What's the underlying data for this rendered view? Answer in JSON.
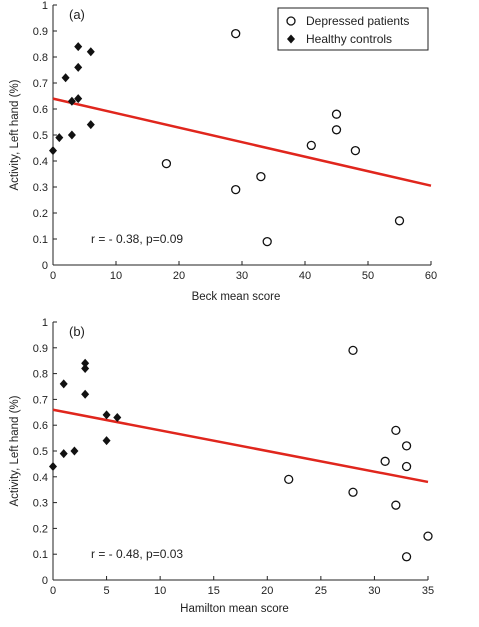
{
  "chart_data": [
    {
      "type": "scatter",
      "panel_label": "(a)",
      "xlabel": "Beck mean score",
      "ylabel": "Activity, Left hand (%)",
      "xlim": [
        0,
        60
      ],
      "ylim": [
        0,
        1
      ],
      "xticks": [
        0,
        10,
        20,
        30,
        40,
        50,
        60
      ],
      "yticks": [
        0,
        0.1,
        0.2,
        0.3,
        0.4,
        0.5,
        0.6,
        0.7,
        0.8,
        0.9,
        1
      ],
      "annotation": "r = - 0.38, p=0.09",
      "legend": {
        "placement": "top-right",
        "entries": [
          {
            "label": "Depressed patients",
            "marker": "open-circle"
          },
          {
            "label": "Healthy controls",
            "marker": "filled-diamond"
          }
        ]
      },
      "series": [
        {
          "name": "Depressed patients",
          "marker": "open-circle",
          "points": [
            [
              18,
              0.39
            ],
            [
              29,
              0.89
            ],
            [
              29,
              0.29
            ],
            [
              33,
              0.34
            ],
            [
              34,
              0.09
            ],
            [
              41,
              0.46
            ],
            [
              45,
              0.58
            ],
            [
              45,
              0.52
            ],
            [
              48,
              0.44
            ],
            [
              55,
              0.17
            ]
          ]
        },
        {
          "name": "Healthy controls",
          "marker": "filled-diamond",
          "points": [
            [
              0,
              0.44
            ],
            [
              1,
              0.49
            ],
            [
              2,
              0.72
            ],
            [
              3,
              0.5
            ],
            [
              3,
              0.63
            ],
            [
              4,
              0.84
            ],
            [
              4,
              0.76
            ],
            [
              4,
              0.64
            ],
            [
              6,
              0.82
            ],
            [
              6,
              0.54
            ]
          ]
        }
      ],
      "fit_line": {
        "color": "#e0261d",
        "x": [
          0,
          60
        ],
        "y": [
          0.64,
          0.305
        ]
      }
    },
    {
      "type": "scatter",
      "panel_label": "(b)",
      "xlabel": "Hamilton mean score",
      "ylabel": "Activity, Left hand (%)",
      "xlim": [
        0,
        35
      ],
      "ylim": [
        0,
        1
      ],
      "xticks": [
        0,
        5,
        10,
        15,
        20,
        25,
        30,
        35
      ],
      "yticks": [
        0,
        0.1,
        0.2,
        0.3,
        0.4,
        0.5,
        0.6,
        0.7,
        0.8,
        0.9,
        1
      ],
      "annotation": "r = - 0.48, p=0.03",
      "series": [
        {
          "name": "Depressed patients",
          "marker": "open-circle",
          "points": [
            [
              22,
              0.39
            ],
            [
              28,
              0.89
            ],
            [
              28,
              0.34
            ],
            [
              31,
              0.46
            ],
            [
              32,
              0.58
            ],
            [
              32,
              0.29
            ],
            [
              33,
              0.52
            ],
            [
              33,
              0.44
            ],
            [
              33,
              0.09
            ],
            [
              35,
              0.17
            ]
          ]
        },
        {
          "name": "Healthy controls",
          "marker": "filled-diamond",
          "points": [
            [
              0,
              0.44
            ],
            [
              1,
              0.76
            ],
            [
              1,
              0.49
            ],
            [
              2,
              0.5
            ],
            [
              3,
              0.84
            ],
            [
              3,
              0.82
            ],
            [
              3,
              0.72
            ],
            [
              5,
              0.64
            ],
            [
              5,
              0.54
            ],
            [
              6,
              0.63
            ]
          ]
        }
      ],
      "fit_line": {
        "color": "#e0261d",
        "x": [
          0,
          35
        ],
        "y": [
          0.66,
          0.38
        ]
      }
    }
  ]
}
